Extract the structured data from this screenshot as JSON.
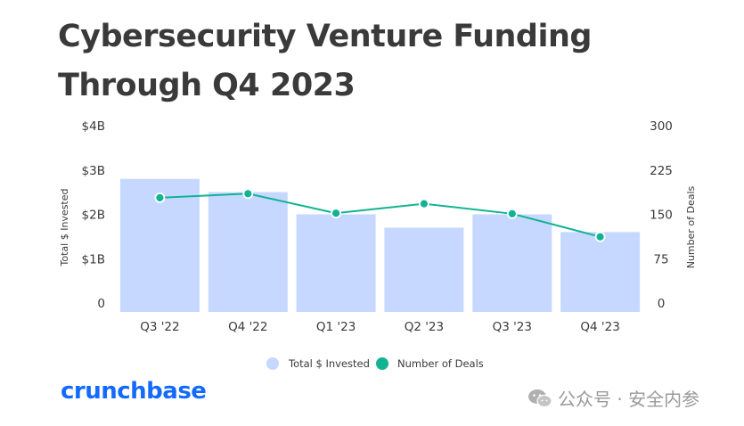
{
  "title": "Cybersecurity Venture Funding Through Q4 2023",
  "brand": "crunchbase",
  "watermark": "公众号 · 安全内参",
  "colors": {
    "bars": "#c6d8ff",
    "line": "#12b393",
    "text": "#3a3a3a",
    "brand": "#146aff"
  },
  "chart_data": {
    "type": "bar",
    "categories": [
      "Q3 '22",
      "Q4 '22",
      "Q1 '23",
      "Q2 '23",
      "Q3 '23",
      "Q4 '23"
    ],
    "series": [
      {
        "name": "Total $ Invested",
        "type": "bar",
        "axis": "left",
        "values": [
          2.8,
          2.5,
          2.0,
          1.7,
          2.0,
          1.6
        ]
      },
      {
        "name": "Number of Deals",
        "type": "line",
        "axis": "right",
        "values": [
          178,
          185,
          152,
          168,
          151,
          112
        ]
      }
    ],
    "ylabel": "Total $ Invested",
    "y2label": "Number of Deals",
    "ylim": [
      0,
      4
    ],
    "y2lim": [
      0,
      300
    ],
    "yticks": [
      "0",
      "$1B",
      "$2B",
      "$3B",
      "$4B"
    ],
    "y2ticks": [
      "0",
      "75",
      "150",
      "225",
      "300"
    ],
    "legend": "bottom-center",
    "grid": false
  }
}
